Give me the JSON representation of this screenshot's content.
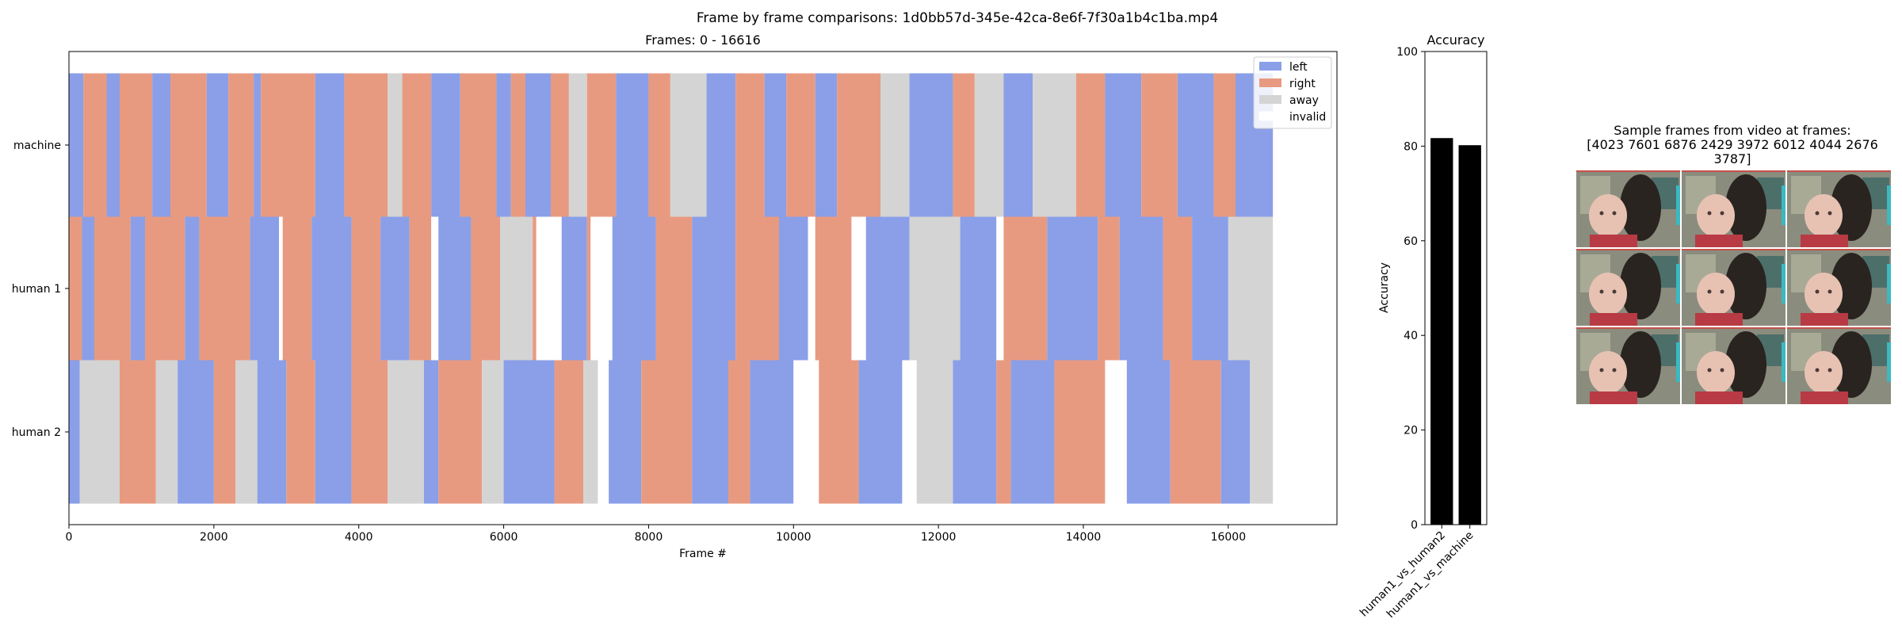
{
  "suptitle": "Frame by frame comparisons: 1d0bb57d-345e-42ca-8e6f-7f30a1b4c1ba.mp4",
  "colors": {
    "left": "#8a9fe8",
    "right": "#e89a80",
    "away": "#d4d4d4",
    "invalid": "#ffffff",
    "bar": "#000000"
  },
  "chart_data": [
    {
      "type": "timeline",
      "title": "Frames: 0 - 16616",
      "xlabel": "Frame #",
      "xlim": [
        0,
        17500
      ],
      "xticks": [
        0,
        2000,
        4000,
        6000,
        8000,
        10000,
        12000,
        14000,
        16000
      ],
      "xtick_labels": [
        "0",
        "2000",
        "4000",
        "6000",
        "8000",
        "10000",
        "12000",
        "14000",
        "16000"
      ],
      "rows": [
        "machine",
        "human 1",
        "human 2"
      ],
      "legend": {
        "placement": "upper right",
        "entries": [
          "left",
          "right",
          "away",
          "invalid"
        ]
      },
      "segments": {
        "machine": [
          [
            0,
            200,
            "left"
          ],
          [
            200,
            520,
            "right"
          ],
          [
            520,
            700,
            "left"
          ],
          [
            700,
            1150,
            "right"
          ],
          [
            1150,
            1400,
            "left"
          ],
          [
            1400,
            1900,
            "right"
          ],
          [
            1900,
            2200,
            "left"
          ],
          [
            2200,
            2550,
            "right"
          ],
          [
            2550,
            2650,
            "left"
          ],
          [
            2650,
            3400,
            "right"
          ],
          [
            3400,
            3800,
            "left"
          ],
          [
            3800,
            4400,
            "right"
          ],
          [
            4400,
            4600,
            "away"
          ],
          [
            4600,
            5000,
            "right"
          ],
          [
            5000,
            5400,
            "left"
          ],
          [
            5400,
            5900,
            "right"
          ],
          [
            5900,
            6100,
            "left"
          ],
          [
            6100,
            6300,
            "right"
          ],
          [
            6300,
            6650,
            "left"
          ],
          [
            6650,
            6900,
            "right"
          ],
          [
            6900,
            7150,
            "away"
          ],
          [
            7150,
            7550,
            "right"
          ],
          [
            7550,
            8000,
            "left"
          ],
          [
            8000,
            8300,
            "right"
          ],
          [
            8300,
            8800,
            "away"
          ],
          [
            8800,
            9200,
            "left"
          ],
          [
            9200,
            9600,
            "right"
          ],
          [
            9600,
            9900,
            "left"
          ],
          [
            9900,
            10300,
            "right"
          ],
          [
            10300,
            10600,
            "left"
          ],
          [
            10600,
            11200,
            "right"
          ],
          [
            11200,
            11600,
            "away"
          ],
          [
            11600,
            12200,
            "left"
          ],
          [
            12200,
            12500,
            "right"
          ],
          [
            12500,
            12900,
            "away"
          ],
          [
            12900,
            13300,
            "left"
          ],
          [
            13300,
            13900,
            "away"
          ],
          [
            13900,
            14300,
            "right"
          ],
          [
            14300,
            14800,
            "left"
          ],
          [
            14800,
            15300,
            "right"
          ],
          [
            15300,
            15800,
            "left"
          ],
          [
            15800,
            16100,
            "right"
          ],
          [
            16100,
            16616,
            "left"
          ]
        ],
        "human 1": [
          [
            0,
            180,
            "right"
          ],
          [
            180,
            350,
            "left"
          ],
          [
            350,
            850,
            "right"
          ],
          [
            850,
            1050,
            "left"
          ],
          [
            1050,
            1600,
            "right"
          ],
          [
            1600,
            1800,
            "left"
          ],
          [
            1800,
            2500,
            "right"
          ],
          [
            2500,
            2900,
            "left"
          ],
          [
            2900,
            2950,
            "invalid"
          ],
          [
            2950,
            3350,
            "right"
          ],
          [
            3350,
            3900,
            "left"
          ],
          [
            3900,
            4300,
            "right"
          ],
          [
            4300,
            4700,
            "left"
          ],
          [
            4700,
            5000,
            "right"
          ],
          [
            5000,
            5100,
            "invalid"
          ],
          [
            5100,
            5550,
            "left"
          ],
          [
            5550,
            5950,
            "right"
          ],
          [
            5950,
            6400,
            "away"
          ],
          [
            6400,
            6450,
            "right"
          ],
          [
            6450,
            6800,
            "invalid"
          ],
          [
            6800,
            7150,
            "left"
          ],
          [
            7150,
            7200,
            "right"
          ],
          [
            7200,
            7500,
            "invalid"
          ],
          [
            7500,
            8100,
            "left"
          ],
          [
            8100,
            8600,
            "right"
          ],
          [
            8600,
            9200,
            "left"
          ],
          [
            9200,
            9800,
            "right"
          ],
          [
            9800,
            10200,
            "left"
          ],
          [
            10200,
            10300,
            "invalid"
          ],
          [
            10300,
            10800,
            "right"
          ],
          [
            10800,
            11000,
            "invalid"
          ],
          [
            11000,
            11600,
            "left"
          ],
          [
            11600,
            12300,
            "away"
          ],
          [
            12300,
            12800,
            "left"
          ],
          [
            12800,
            12900,
            "invalid"
          ],
          [
            12900,
            13500,
            "right"
          ],
          [
            13500,
            14200,
            "left"
          ],
          [
            14200,
            14500,
            "right"
          ],
          [
            14500,
            15100,
            "left"
          ],
          [
            15100,
            15500,
            "right"
          ],
          [
            15500,
            16000,
            "left"
          ],
          [
            16000,
            16616,
            "away"
          ]
        ],
        "human 2": [
          [
            0,
            150,
            "left"
          ],
          [
            150,
            700,
            "away"
          ],
          [
            700,
            1200,
            "right"
          ],
          [
            1200,
            1500,
            "away"
          ],
          [
            1500,
            2000,
            "left"
          ],
          [
            2000,
            2300,
            "right"
          ],
          [
            2300,
            2600,
            "away"
          ],
          [
            2600,
            3000,
            "left"
          ],
          [
            3000,
            3400,
            "right"
          ],
          [
            3400,
            3900,
            "left"
          ],
          [
            3900,
            4400,
            "right"
          ],
          [
            4400,
            4900,
            "away"
          ],
          [
            4900,
            5100,
            "left"
          ],
          [
            5100,
            5700,
            "right"
          ],
          [
            5700,
            6000,
            "away"
          ],
          [
            6000,
            6700,
            "left"
          ],
          [
            6700,
            7100,
            "right"
          ],
          [
            7100,
            7300,
            "away"
          ],
          [
            7300,
            7450,
            "invalid"
          ],
          [
            7450,
            7900,
            "left"
          ],
          [
            7900,
            8600,
            "right"
          ],
          [
            8600,
            9100,
            "left"
          ],
          [
            9100,
            9400,
            "right"
          ],
          [
            9400,
            10000,
            "left"
          ],
          [
            10000,
            10350,
            "invalid"
          ],
          [
            10350,
            10900,
            "right"
          ],
          [
            10900,
            11500,
            "left"
          ],
          [
            11500,
            11700,
            "invalid"
          ],
          [
            11700,
            12200,
            "away"
          ],
          [
            12200,
            12800,
            "left"
          ],
          [
            12800,
            13000,
            "right"
          ],
          [
            13000,
            13600,
            "left"
          ],
          [
            13600,
            14300,
            "right"
          ],
          [
            14300,
            14600,
            "invalid"
          ],
          [
            14600,
            15200,
            "left"
          ],
          [
            15200,
            15900,
            "right"
          ],
          [
            15900,
            16300,
            "left"
          ],
          [
            16300,
            16616,
            "away"
          ]
        ]
      }
    },
    {
      "type": "bar",
      "title": "Accuracy",
      "ylabel": "Accuracy",
      "ylim": [
        0,
        100
      ],
      "yticks": [
        0,
        20,
        40,
        60,
        80,
        100
      ],
      "ytick_labels": [
        "0",
        "20",
        "40",
        "60",
        "80",
        "100"
      ],
      "categories": [
        "human1_vs_human2",
        "human1_vs_machine"
      ],
      "values": [
        81.7,
        80.2
      ]
    }
  ],
  "sample_frames": {
    "title_lines": [
      "Sample frames from video at frames:",
      "[4023 7601 6876 2429 3972 6012 4044 2676",
      "3787]"
    ],
    "frames": [
      4023,
      7601,
      6876,
      2429,
      3972,
      6012,
      4044,
      2676,
      3787
    ]
  }
}
